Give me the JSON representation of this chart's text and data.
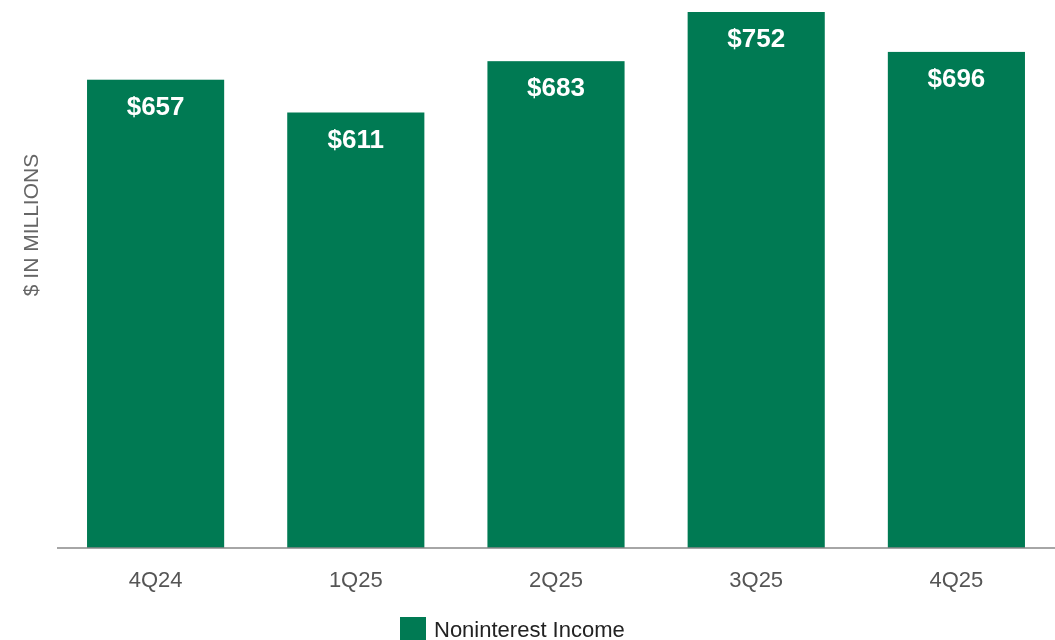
{
  "chart_data": {
    "type": "bar",
    "ylabel": "$ IN MILLIONS",
    "categories": [
      "4Q24",
      "1Q25",
      "2Q25",
      "3Q25",
      "4Q25"
    ],
    "series": [
      {
        "name": "Noninterest Income",
        "color": "#007a53",
        "values": [
          657,
          611,
          683,
          752,
          696
        ],
        "value_labels": [
          "$657",
          "$611",
          "$683",
          "$752",
          "$696"
        ]
      }
    ],
    "legend": "bottom"
  }
}
